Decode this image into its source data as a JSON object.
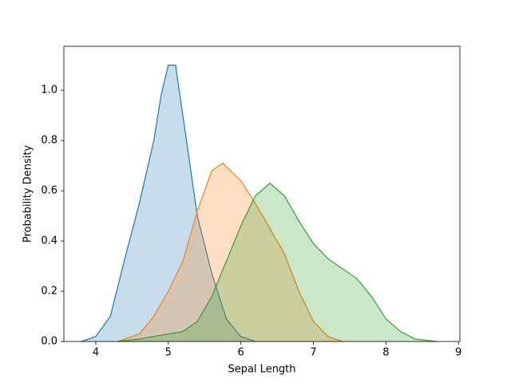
{
  "chart_data": {
    "type": "kde",
    "xlabel": "Sepal Length",
    "ylabel": "Probability Density",
    "xlim": [
      3.56,
      9.02
    ],
    "ylim": [
      0,
      1.175
    ],
    "xticks": [
      4,
      5,
      6,
      7,
      8,
      9
    ],
    "yticks": [
      {
        "value": 0,
        "label": "0.0"
      },
      0.2,
      0.4,
      0.6,
      0.8,
      {
        "value": 1,
        "label": "1.0"
      }
    ],
    "series": [
      {
        "color": "#1f77b4",
        "x": [
          3.8,
          4.0,
          4.2,
          4.4,
          4.6,
          4.8,
          4.9,
          5.0,
          5.1,
          5.2,
          5.4,
          5.6,
          5.8,
          6.0,
          6.2
        ],
        "values": [
          0,
          0.02,
          0.1,
          0.33,
          0.55,
          0.8,
          0.98,
          1.1,
          1.1,
          0.9,
          0.5,
          0.27,
          0.09,
          0.02,
          0
        ]
      },
      {
        "color": "#ff7f0e",
        "x": [
          4.3,
          4.6,
          4.8,
          5.0,
          5.2,
          5.4,
          5.6,
          5.75,
          6.0,
          6.2,
          6.4,
          6.6,
          6.8,
          7.0,
          7.2,
          7.4
        ],
        "values": [
          0,
          0.03,
          0.1,
          0.2,
          0.32,
          0.52,
          0.68,
          0.71,
          0.64,
          0.55,
          0.45,
          0.35,
          0.2,
          0.08,
          0.02,
          0
        ]
      },
      {
        "color": "#2ca02c",
        "x": [
          4.3,
          4.6,
          4.8,
          5.0,
          5.2,
          5.4,
          5.6,
          5.8,
          6.0,
          6.2,
          6.4,
          6.6,
          6.8,
          7.0,
          7.2,
          7.4,
          7.6,
          7.8,
          8.0,
          8.2,
          8.4,
          8.7
        ],
        "values": [
          0,
          0.01,
          0.02,
          0.03,
          0.04,
          0.08,
          0.18,
          0.32,
          0.46,
          0.58,
          0.63,
          0.58,
          0.48,
          0.39,
          0.33,
          0.29,
          0.25,
          0.18,
          0.09,
          0.04,
          0.01,
          0
        ]
      }
    ]
  }
}
